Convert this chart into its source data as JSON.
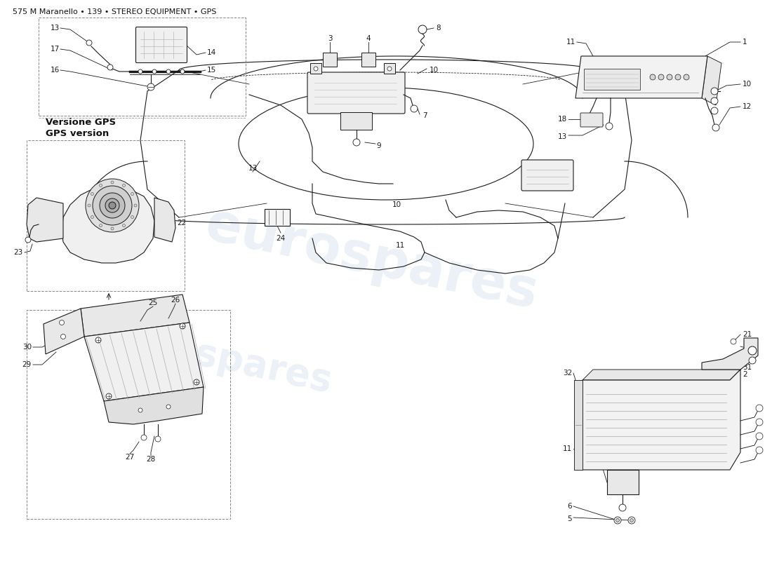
{
  "title": "575 M Maranello • 139 • STEREO EQUIPMENT • GPS",
  "background_color": "#ffffff",
  "title_fontsize": 8,
  "watermark_text": "eurospares",
  "watermark_color": "#c8d4e8",
  "watermark_alpha": 0.35,
  "line_color": "#1a1a1a",
  "label_fontsize": 7.5,
  "label_color": "#111111"
}
